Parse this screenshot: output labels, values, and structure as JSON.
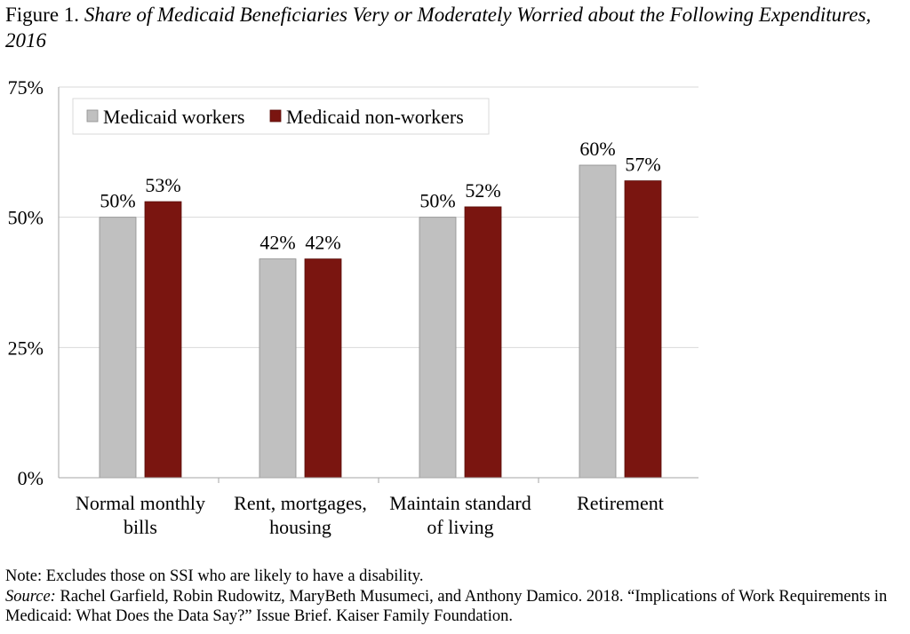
{
  "figure": {
    "label": "Figure 1.",
    "title": "Share of Medicaid Beneficiaries Very or Moderately Worried about the Following Expenditures, 2016"
  },
  "chart_data": {
    "type": "bar",
    "categories": [
      [
        "Normal monthly",
        "bills"
      ],
      [
        "Rent, mortgages,",
        "housing"
      ],
      [
        "Maintain standard",
        "of living"
      ],
      [
        "Retirement"
      ]
    ],
    "series": [
      {
        "name": "Medicaid workers",
        "values": [
          50,
          42,
          50,
          60
        ],
        "labels": [
          "50%",
          "42%",
          "50%",
          "60%"
        ],
        "color": "#c0c0c0"
      },
      {
        "name": "Medicaid non-workers",
        "values": [
          53,
          42,
          52,
          57
        ],
        "labels": [
          "53%",
          "42%",
          "52%",
          "57%"
        ],
        "color": "#7a1510"
      }
    ],
    "ylim": [
      0,
      75
    ],
    "yticks": [
      0,
      25,
      50,
      75
    ],
    "ytick_labels": [
      "0%",
      "25%",
      "50%",
      "75%"
    ],
    "grid": true,
    "legend": "top-left, inside plot",
    "xlabel": "",
    "ylabel": ""
  },
  "notes": {
    "note": "Note: Excludes those on SSI who are likely to have a disability.",
    "source_label": "Source:",
    "source_text": " Rachel Garfield, Robin Rudowitz, MaryBeth Musumeci, and Anthony Damico. 2018. “Implications of Work Requirements in Medicaid: What Does the Data Say?” Issue Brief. Kaiser Family Foundation."
  },
  "colors": {
    "workers": "#c0c0c0",
    "non_workers": "#7a1510",
    "grid": "#d9d9d9",
    "axis": "#a6a6a6"
  }
}
